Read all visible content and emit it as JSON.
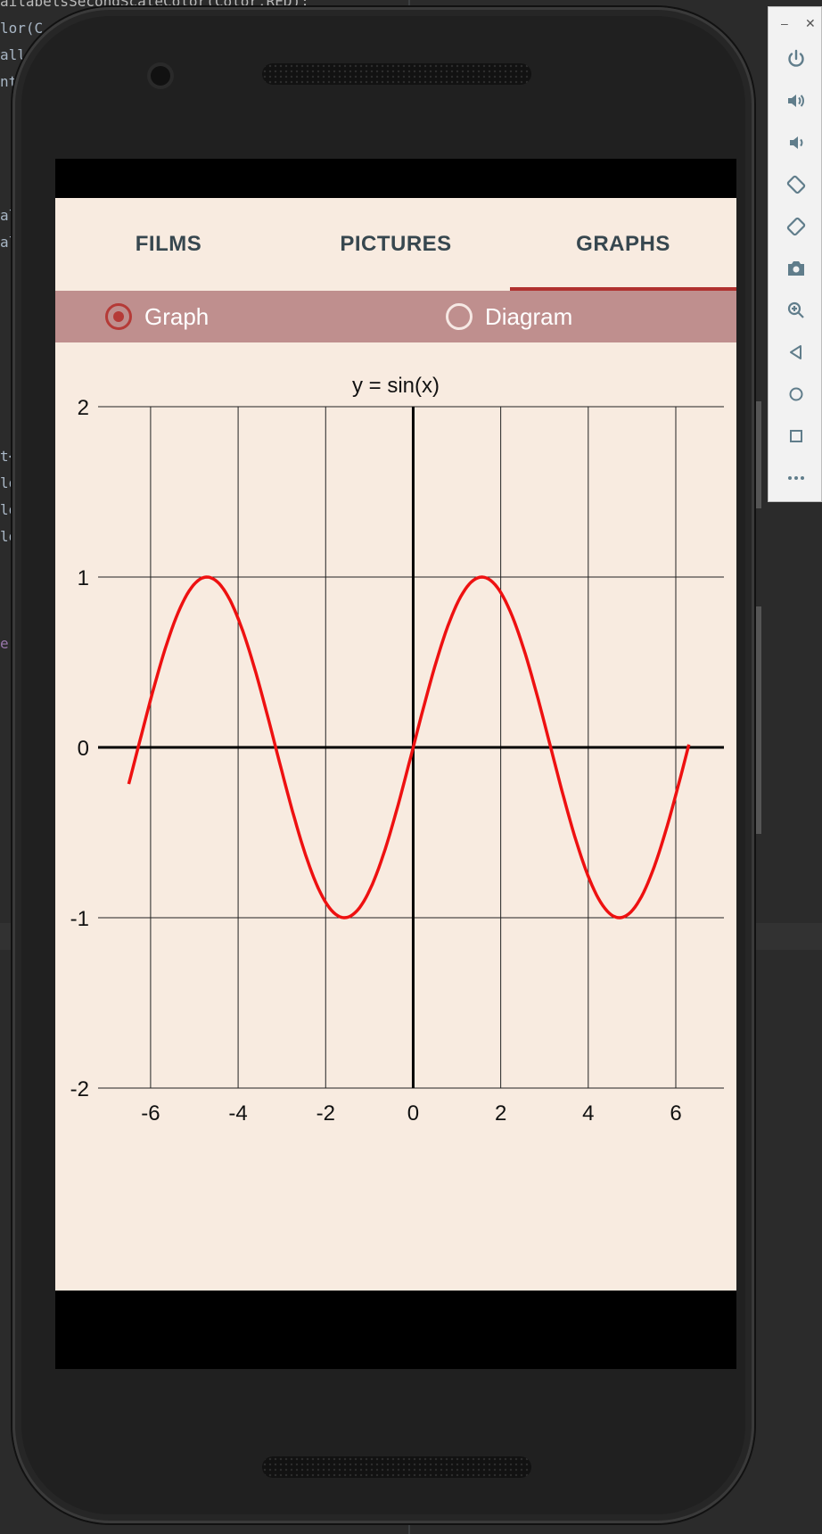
{
  "ide": {
    "code_lines": [
      "ailabelsSecondScaleColor(Color.RED);",
      "lor(C",
      "all",
      "nt",
      "al",
      "al",
      "t<",
      "lo",
      "lo",
      "lo",
      "e)"
    ]
  },
  "app": {
    "tabs": [
      {
        "label": "FILMS",
        "active": false
      },
      {
        "label": "PICTURES",
        "active": false
      },
      {
        "label": "GRAPHS",
        "active": true
      }
    ],
    "radios": [
      {
        "label": "Graph",
        "checked": true
      },
      {
        "label": "Diagram",
        "checked": false
      }
    ],
    "accent_color": "#b0312f"
  },
  "chart_data": {
    "type": "line",
    "title": "y = sin(x)",
    "function": "sin(x)",
    "x_range": [
      -6.5,
      6.3
    ],
    "xlim": [
      -7.2,
      7.1
    ],
    "ylim": [
      -2,
      2
    ],
    "x_ticks": [
      -6,
      -4,
      -2,
      0,
      2,
      4,
      6
    ],
    "y_ticks": [
      -2,
      -1,
      0,
      1,
      2
    ],
    "grid": true,
    "series": [
      {
        "color": "#ee1111",
        "x": [
          -6.5,
          -6,
          -5.5,
          -5,
          -4.71,
          -4.5,
          -4,
          -3.5,
          -3,
          -2.5,
          -2,
          -1.57,
          -1.5,
          -1,
          -0.5,
          0,
          0.5,
          1,
          1.5,
          1.57,
          2,
          2.5,
          3,
          3.5,
          4,
          4.5,
          4.71,
          5,
          5.5,
          6,
          6.3
        ],
        "y": [
          -0.215,
          0.279,
          0.706,
          0.959,
          1.0,
          0.977,
          0.757,
          0.351,
          -0.141,
          -0.598,
          -0.909,
          -1.0,
          -0.997,
          -0.841,
          -0.479,
          0,
          0.479,
          0.841,
          0.997,
          1.0,
          0.909,
          0.598,
          0.141,
          -0.351,
          -0.757,
          -0.977,
          -1.0,
          -0.959,
          -0.706,
          -0.279,
          0.017
        ]
      }
    ]
  },
  "toolbar": {
    "minimize_label": "–",
    "close_label": "✕",
    "tools": [
      "power-icon",
      "volume-up-icon",
      "volume-down-icon",
      "rotate-left-icon",
      "rotate-right-icon",
      "camera-icon",
      "zoom-icon",
      "back-icon",
      "home-icon",
      "overview-icon",
      "more-icon"
    ]
  }
}
